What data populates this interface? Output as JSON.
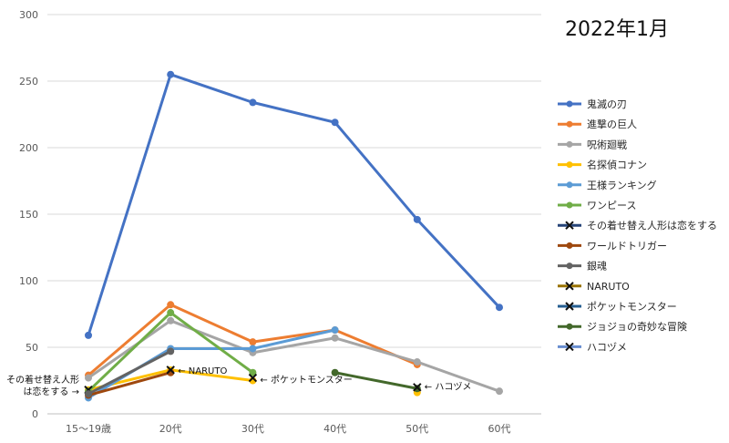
{
  "chart_data": {
    "type": "line",
    "title": "2022年1月",
    "xlabel": "",
    "ylabel": "",
    "categories": [
      "15〜19歳",
      "20代",
      "30代",
      "40代",
      "50代",
      "60代"
    ],
    "ylim": [
      0,
      300
    ],
    "yticks": [
      0,
      50,
      100,
      150,
      200,
      250,
      300
    ],
    "grid": "horizontal",
    "legend_position": "right",
    "series": [
      {
        "name": "鬼滅の刃",
        "color": "#4472C4",
        "marker": "circle",
        "values": [
          59,
          255,
          234,
          219,
          146,
          80
        ]
      },
      {
        "name": "進撃の巨人",
        "color": "#ED7D31",
        "marker": "circle",
        "values": [
          29,
          82,
          54,
          63,
          37,
          null
        ]
      },
      {
        "name": "呪術廻戦",
        "color": "#A5A5A5",
        "marker": "circle",
        "values": [
          27,
          70,
          46,
          57,
          39,
          17
        ]
      },
      {
        "name": "名探偵コナン",
        "color": "#FFC000",
        "marker": "circle",
        "values": [
          18,
          33,
          25,
          null,
          16,
          null
        ]
      },
      {
        "name": "王様ランキング",
        "color": "#5B9BD5",
        "marker": "circle",
        "values": [
          12,
          49,
          49,
          63,
          null,
          null
        ]
      },
      {
        "name": "ワンピース",
        "color": "#70AD47",
        "marker": "circle",
        "values": [
          17,
          76,
          31,
          null,
          null,
          null
        ]
      },
      {
        "name": "その着せ替え人形は恋をする",
        "color": "#264478",
        "marker": "x",
        "values": [
          18,
          null,
          null,
          null,
          null,
          null
        ]
      },
      {
        "name": "ワールドトリガー",
        "color": "#9E480E",
        "marker": "circle",
        "values": [
          14,
          31,
          null,
          null,
          null,
          null
        ]
      },
      {
        "name": "銀魂",
        "color": "#636363",
        "marker": "circle",
        "values": [
          15,
          47,
          null,
          null,
          null,
          null
        ]
      },
      {
        "name": "NARUTO",
        "color": "#997300",
        "marker": "x",
        "values": [
          null,
          33,
          null,
          null,
          null,
          null
        ]
      },
      {
        "name": "ポケットモンスター",
        "color": "#255E91",
        "marker": "x",
        "values": [
          null,
          null,
          27,
          null,
          null,
          null
        ]
      },
      {
        "name": "ジョジョの奇妙な冒険",
        "color": "#43682B",
        "marker": "circle",
        "values": [
          null,
          null,
          null,
          31,
          19,
          null
        ]
      },
      {
        "name": "ハコヅメ",
        "color": "#698ED0",
        "marker": "x",
        "values": [
          null,
          null,
          null,
          null,
          20,
          null
        ]
      }
    ],
    "annotations": [
      {
        "text": "その着せ替え人形",
        "category": "15〜19歳",
        "y": 26
      },
      {
        "text": "は恋をする →",
        "category": "15〜19歳",
        "y": 17
      },
      {
        "text": "← NARUTO",
        "category": "20代",
        "y": 33
      },
      {
        "text": "← ポケットモンスター",
        "category": "30代",
        "y": 26
      },
      {
        "text": "← ハコヅメ",
        "category": "50代",
        "y": 21
      }
    ]
  }
}
